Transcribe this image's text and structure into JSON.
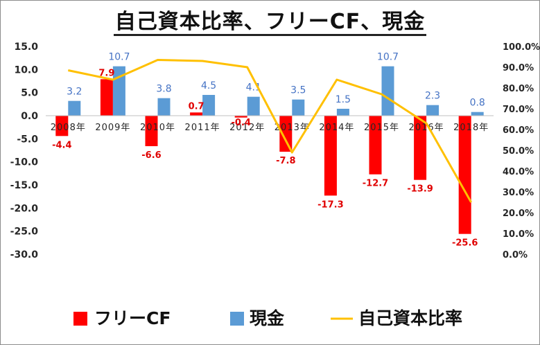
{
  "chart_data": {
    "type": "bar",
    "title": "自己資本比率、フリーCF、現金",
    "categories": [
      "2008年",
      "2009年",
      "2010年",
      "2011年",
      "2012年",
      "2013年",
      "2014年",
      "2015年",
      "2016年",
      "2018年"
    ],
    "series": [
      {
        "name": "フリーCF",
        "type": "bar",
        "axis": "left",
        "color": "#ff0000",
        "values": [
          -4.4,
          7.9,
          -6.6,
          0.7,
          -0.4,
          -7.8,
          -17.3,
          -12.7,
          -13.9,
          -25.6
        ],
        "labels": [
          "-4.4",
          "7.9",
          "-6.6",
          "0.7",
          "-0.4",
          "-7.8",
          "-17.3",
          "-12.7",
          "-13.9",
          "-25.6"
        ]
      },
      {
        "name": "現金",
        "type": "bar",
        "axis": "left",
        "color": "#5b9bd5",
        "values": [
          3.2,
          10.7,
          3.8,
          4.5,
          4.1,
          3.5,
          1.5,
          10.7,
          2.3,
          0.8
        ],
        "labels": [
          "3.2",
          "10.7",
          "3.8",
          "4.5",
          "4.1",
          "3.5",
          "1.5",
          "10.7",
          "2.3",
          "0.8"
        ]
      },
      {
        "name": "自己資本比率",
        "type": "line",
        "axis": "right",
        "color": "#ffc000",
        "values": [
          0.885,
          0.84,
          0.935,
          0.93,
          0.9,
          0.49,
          0.84,
          0.77,
          0.63,
          0.25
        ]
      }
    ],
    "y_left": {
      "ylim": [
        -30,
        15
      ],
      "ticks": [
        "15.0",
        "10.0",
        "5.0",
        "0.0",
        "-5.0",
        "-10.0",
        "-15.0",
        "-20.0",
        "-25.0",
        "-30.0"
      ]
    },
    "y_right": {
      "ylim": [
        0,
        1
      ],
      "ticks": [
        "100.0%",
        "90.0%",
        "80.0%",
        "70.0%",
        "60.0%",
        "50.0%",
        "40.0%",
        "30.0%",
        "20.0%",
        "10.0%",
        "0.0%"
      ]
    },
    "grid": false,
    "legend_position": "bottom",
    "legend": [
      "フリーCF",
      "現金",
      "自己資本比率"
    ]
  }
}
